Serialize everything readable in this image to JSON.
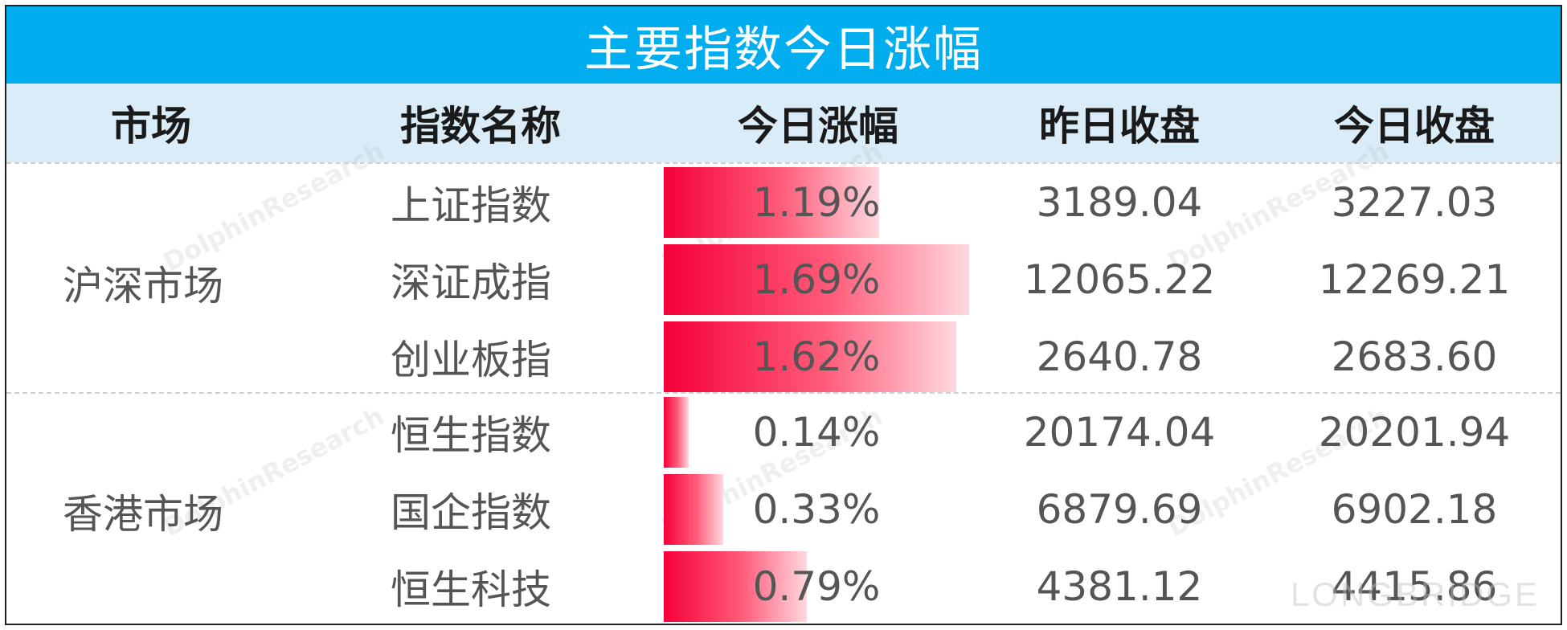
{
  "chart_data": {
    "type": "table",
    "title": "主要指数今日涨幅",
    "columns": [
      "市场",
      "指数名称",
      "今日涨幅",
      "昨日收盘",
      "今日收盘"
    ],
    "groups": [
      {
        "market": "沪深市场",
        "rows": [
          {
            "name": "上证指数",
            "change_pct": 1.19,
            "change_label": "1.19%",
            "prev_close": "3189.04",
            "close": "3227.03"
          },
          {
            "name": "深证成指",
            "change_pct": 1.69,
            "change_label": "1.69%",
            "prev_close": "12065.22",
            "close": "12269.21"
          },
          {
            "name": "创业板指",
            "change_pct": 1.62,
            "change_label": "1.62%",
            "prev_close": "2640.78",
            "close": "2683.60"
          }
        ]
      },
      {
        "market": "香港市场",
        "rows": [
          {
            "name": "恒生指数",
            "change_pct": 0.14,
            "change_label": "0.14%",
            "prev_close": "20174.04",
            "close": "20201.94"
          },
          {
            "name": "国企指数",
            "change_pct": 0.33,
            "change_label": "0.33%",
            "prev_close": "6879.69",
            "close": "6902.18"
          },
          {
            "name": "恒生科技",
            "change_pct": 0.79,
            "change_label": "0.79%",
            "prev_close": "4381.12",
            "close": "4415.86"
          }
        ]
      }
    ],
    "bar_max": 1.69
  },
  "colors": {
    "title_bg": "#00adef",
    "header_bg": "#d9ecf7",
    "bar_start": "#f5003a",
    "bar_end": "#ffd8df"
  },
  "watermark": "DolphinResearch",
  "watermark_small": "LONGBRIDGE",
  "brand": "LONGBRIDGE"
}
